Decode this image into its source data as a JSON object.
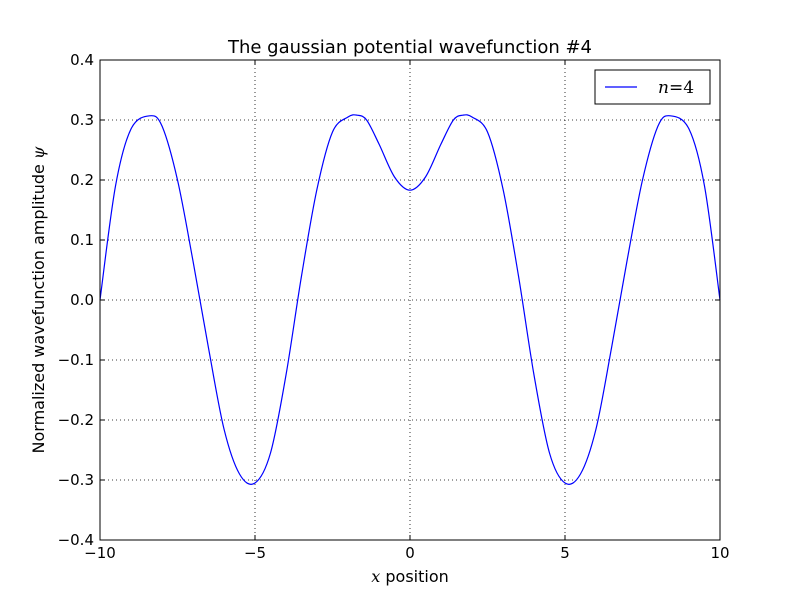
{
  "chart_data": {
    "type": "line",
    "title": "The gaussian potential wavefunction #4",
    "xlabel_math": "x",
    "xlabel_text": " position",
    "ylabel_text": "Normalized wavefunction amplitude ",
    "ylabel_math": "ψ",
    "xlim": [
      -10,
      10
    ],
    "ylim": [
      -0.4,
      0.4
    ],
    "xticks": [
      -10,
      -5,
      0,
      5,
      10
    ],
    "xtick_labels": [
      "−10",
      "−5",
      "0",
      "5",
      "10"
    ],
    "yticks": [
      -0.4,
      -0.3,
      -0.2,
      -0.1,
      0.0,
      0.1,
      0.2,
      0.3,
      0.4
    ],
    "ytick_labels": [
      "−0.4",
      "−0.3",
      "−0.2",
      "−0.1",
      "0.0",
      "0.1",
      "0.2",
      "0.3",
      "0.4"
    ],
    "grid": true,
    "legend_position": "top-right",
    "series": [
      {
        "name": "n=4",
        "legend_math_left": "n",
        "legend_eq": "=",
        "legend_math_right": "4",
        "color": "#0000ff",
        "x": [
          -10,
          -9.5,
          -9,
          -8.4,
          -8,
          -7.5,
          -7,
          -6.5,
          -6,
          -5.5,
          -5,
          -4.5,
          -4,
          -3.5,
          -3,
          -2.5,
          -2,
          -1.7,
          -1.4,
          -1,
          -0.5,
          0,
          0.5,
          1,
          1.4,
          1.7,
          2,
          2.5,
          3,
          3.5,
          4,
          4.5,
          5,
          5.5,
          6,
          6.5,
          7,
          7.5,
          8,
          8.4,
          9,
          9.5,
          10
        ],
        "y": [
          0.0,
          0.19,
          0.285,
          0.307,
          0.29,
          0.2,
          0.065,
          -0.08,
          -0.215,
          -0.29,
          -0.305,
          -0.255,
          -0.125,
          0.04,
          0.185,
          0.28,
          0.305,
          0.308,
          0.3,
          0.26,
          0.205,
          0.183,
          0.205,
          0.26,
          0.3,
          0.308,
          0.305,
          0.28,
          0.185,
          0.04,
          -0.125,
          -0.255,
          -0.305,
          -0.29,
          -0.215,
          -0.08,
          0.065,
          0.2,
          0.29,
          0.307,
          0.285,
          0.19,
          0.0
        ]
      }
    ]
  }
}
